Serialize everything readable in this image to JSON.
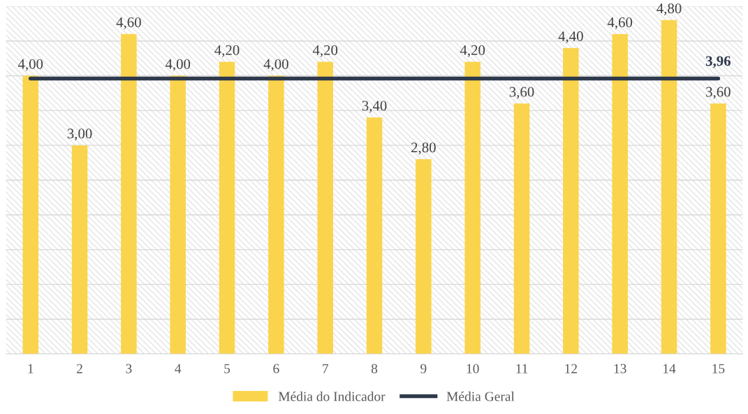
{
  "chart_data": {
    "type": "bar",
    "categories": [
      "1",
      "2",
      "3",
      "4",
      "5",
      "6",
      "7",
      "8",
      "9",
      "10",
      "11",
      "12",
      "13",
      "14",
      "15"
    ],
    "series": [
      {
        "name": "Média do Indicador",
        "color": "#fad44c",
        "values": [
          4.0,
          3.0,
          4.6,
          4.0,
          4.2,
          4.0,
          4.2,
          3.4,
          2.8,
          4.2,
          3.6,
          4.4,
          4.6,
          4.8,
          3.6
        ],
        "value_labels": [
          "4,00",
          "3,00",
          "4,60",
          "4,00",
          "4,20",
          "4,00",
          "4,20",
          "3,40",
          "2,80",
          "4,20",
          "3,60",
          "4,40",
          "4,60",
          "4,80",
          "3,60"
        ]
      },
      {
        "name": "Média Geral",
        "type": "line",
        "color": "#2e3a4b",
        "values": [
          3.96,
          3.96,
          3.96,
          3.96,
          3.96,
          3.96,
          3.96,
          3.96,
          3.96,
          3.96,
          3.96,
          3.96,
          3.96,
          3.96,
          3.96
        ],
        "value_labels": [
          null,
          null,
          null,
          null,
          null,
          null,
          null,
          null,
          null,
          null,
          null,
          null,
          null,
          null,
          "3,96"
        ]
      }
    ],
    "ylim": [
      0,
      5
    ],
    "yticks": [
      {
        "value": 0,
        "label": null
      },
      {
        "value": 0.5,
        "label": null
      },
      {
        "value": 1,
        "label": null
      },
      {
        "value": 1.5,
        "label": null
      },
      {
        "value": 2,
        "label": null
      },
      {
        "value": 2.5,
        "label": null
      },
      {
        "value": 3,
        "label": null
      },
      {
        "value": 3.5,
        "label": null
      },
      {
        "value": 4,
        "label": null
      },
      {
        "value": 4.5,
        "label": null
      },
      {
        "value": 5,
        "label": null
      }
    ],
    "tick_labels": "x",
    "grid": "y",
    "legend": "bottom",
    "marker": "none",
    "line_style": "solid"
  }
}
